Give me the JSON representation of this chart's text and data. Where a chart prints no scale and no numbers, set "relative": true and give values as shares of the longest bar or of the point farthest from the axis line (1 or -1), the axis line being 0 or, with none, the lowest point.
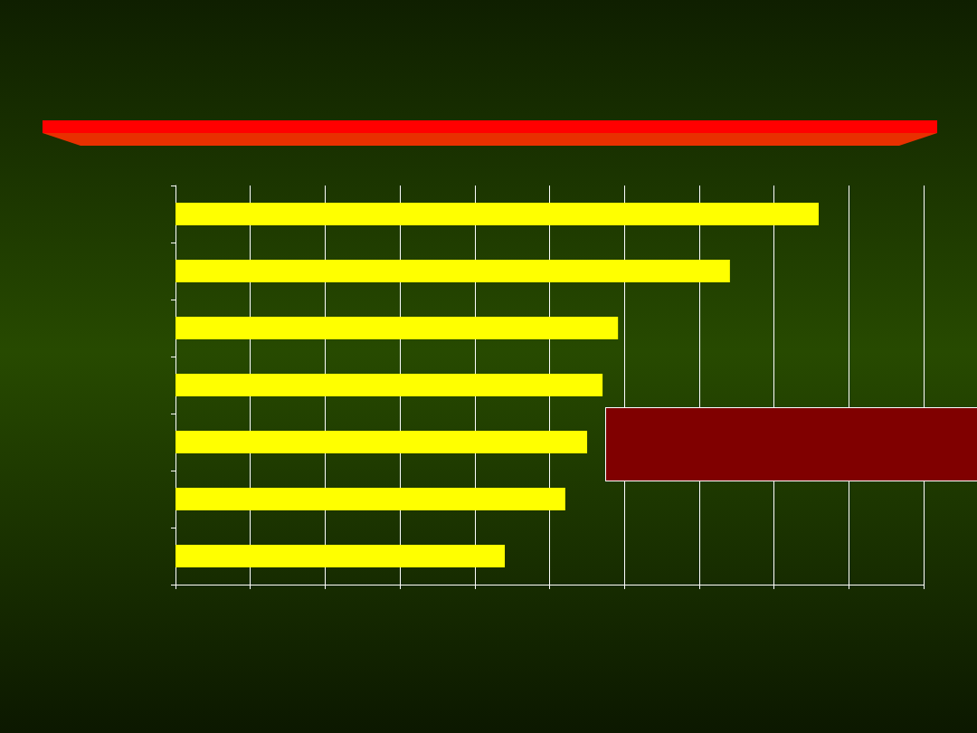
{
  "chart_data": {
    "type": "bar",
    "orientation": "horizontal",
    "relative": true,
    "categories": [
      null,
      null,
      null,
      null,
      null,
      null,
      null
    ],
    "values": [
      1,
      0.862,
      0.688,
      0.664,
      0.64,
      0.606,
      0.512
    ],
    "color": "#ffff00",
    "grid": "x"
  }
}
